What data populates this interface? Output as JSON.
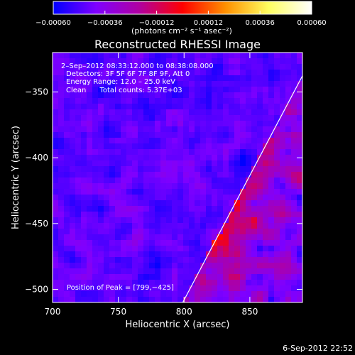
{
  "chart_data": {
    "type": "heatmap",
    "title": "Reconstructed RHESSI Image",
    "xlabel": "Heliocentric X (arcsec)",
    "ylabel": "Heliocentric Y (arcsec)",
    "xlim": [
      700,
      890
    ],
    "ylim": [
      -510,
      -320
    ],
    "x_ticks": [
      700,
      750,
      800,
      850
    ],
    "y_ticks": [
      -350,
      -400,
      -450,
      -500
    ],
    "x_tick_labels": [
      "700",
      "750",
      "800",
      "850"
    ],
    "y_tick_labels": [
      "−350",
      "−400",
      "−450",
      "−500"
    ],
    "colorbar": {
      "range": [
        -0.0006,
        0.0006
      ],
      "ticks": [
        -0.0006,
        -0.00036,
        -0.00012,
        0.00012,
        0.00036,
        0.0006
      ],
      "tick_labels": [
        "−0.00060",
        "−0.00036",
        "−0.00012",
        "0.00012",
        "0.00036",
        "0.00060"
      ],
      "unit_label": "(photons cm⁻² s⁻¹ asec⁻²)",
      "stops": [
        "#0000ff",
        "#7f00ff",
        "#b000a0",
        "#ff0000",
        "#ff9000",
        "#ffff60",
        "#ffffff"
      ]
    },
    "annotations": [
      "2–Sep–2012 08:33:12.000 to 08:38:08.000",
      "Detectors: 3F 5F 6F 7F 8F 9F, Att 0",
      "Energy Range: 12.0 – 25.0 keV",
      "Clean      Total counts: 5.37E+03"
    ],
    "peak_label": "Position of Peak = [799,−425]",
    "peak": [
      799,
      -425
    ],
    "limb": [
      [
        893,
        -332
      ],
      [
        799,
        -510
      ]
    ],
    "timestamp": "6-Sep-2012 22:52"
  }
}
